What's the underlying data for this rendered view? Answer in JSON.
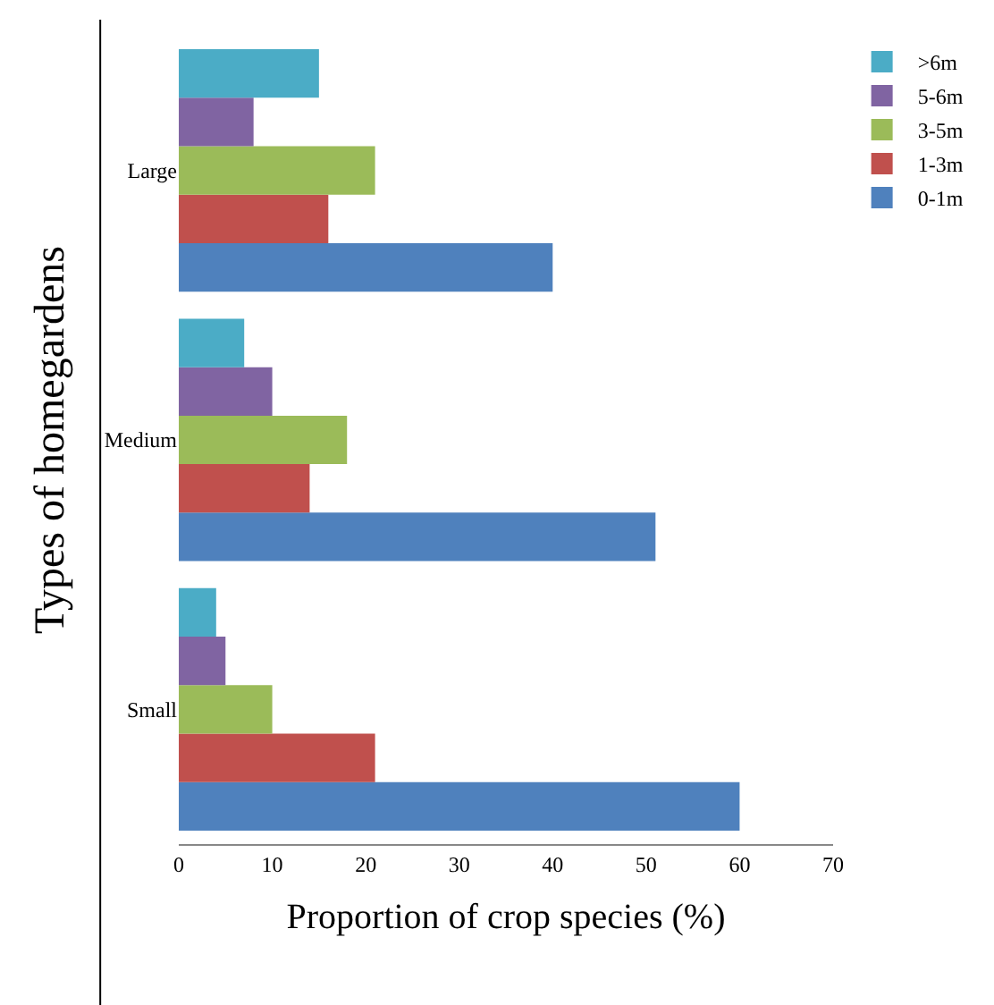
{
  "chart_data": {
    "type": "bar",
    "orientation": "horizontal",
    "xlabel": "Proportion of crop species (%)",
    "ylabel": "Types of homegardens",
    "categories": [
      "Large",
      "Medium",
      "Small"
    ],
    "series": [
      {
        "name": "0-1m",
        "color": "#4f81bd",
        "values": [
          40,
          51,
          60
        ]
      },
      {
        "name": "1-3m",
        "color": "#c0504d",
        "values": [
          16,
          14,
          21
        ]
      },
      {
        "name": "3-5m",
        "color": "#9bbb59",
        "values": [
          21,
          18,
          10
        ]
      },
      {
        "name": "5-6m",
        "color": "#8064a2",
        "values": [
          8,
          10,
          5
        ]
      },
      {
        "name": ">6m",
        "color": "#4bacc6",
        "values": [
          15,
          7,
          4
        ]
      }
    ],
    "xlim": [
      0,
      70
    ],
    "xticks": [
      0,
      10,
      20,
      30,
      40,
      50,
      60,
      70
    ],
    "legend": "right"
  }
}
